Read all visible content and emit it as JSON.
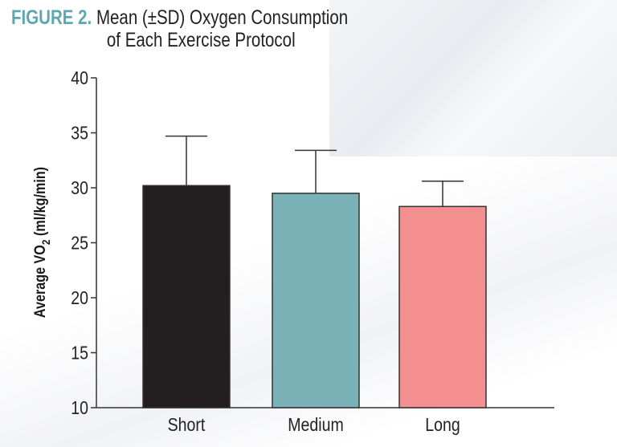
{
  "figure_label": "FIGURE 2.",
  "title_line1": "Mean (±SD) Oxygen Consumption",
  "title_line2": "of Each Exercise Protocol",
  "chart_data": {
    "type": "bar",
    "title": "Mean (±SD) Oxygen Consumption of Each Exercise Protocol",
    "categories": [
      "Short",
      "Medium",
      "Long"
    ],
    "values": [
      30.2,
      29.5,
      28.3
    ],
    "error_sd": [
      4.5,
      3.9,
      2.3
    ],
    "colors": [
      "#231f20",
      "#7ab2b8",
      "#f48f8f"
    ],
    "xlabel": "",
    "ylabel": "Average VO2 (ml/kg/min)",
    "ylabel_main": "Average VO",
    "ylabel_sub": "2",
    "ylabel_unit": " (ml/kg/min)",
    "ylim": [
      10,
      40
    ],
    "yticks": [
      10,
      15,
      20,
      25,
      30,
      35,
      40
    ],
    "grid": false,
    "error_bars": "upper only"
  }
}
